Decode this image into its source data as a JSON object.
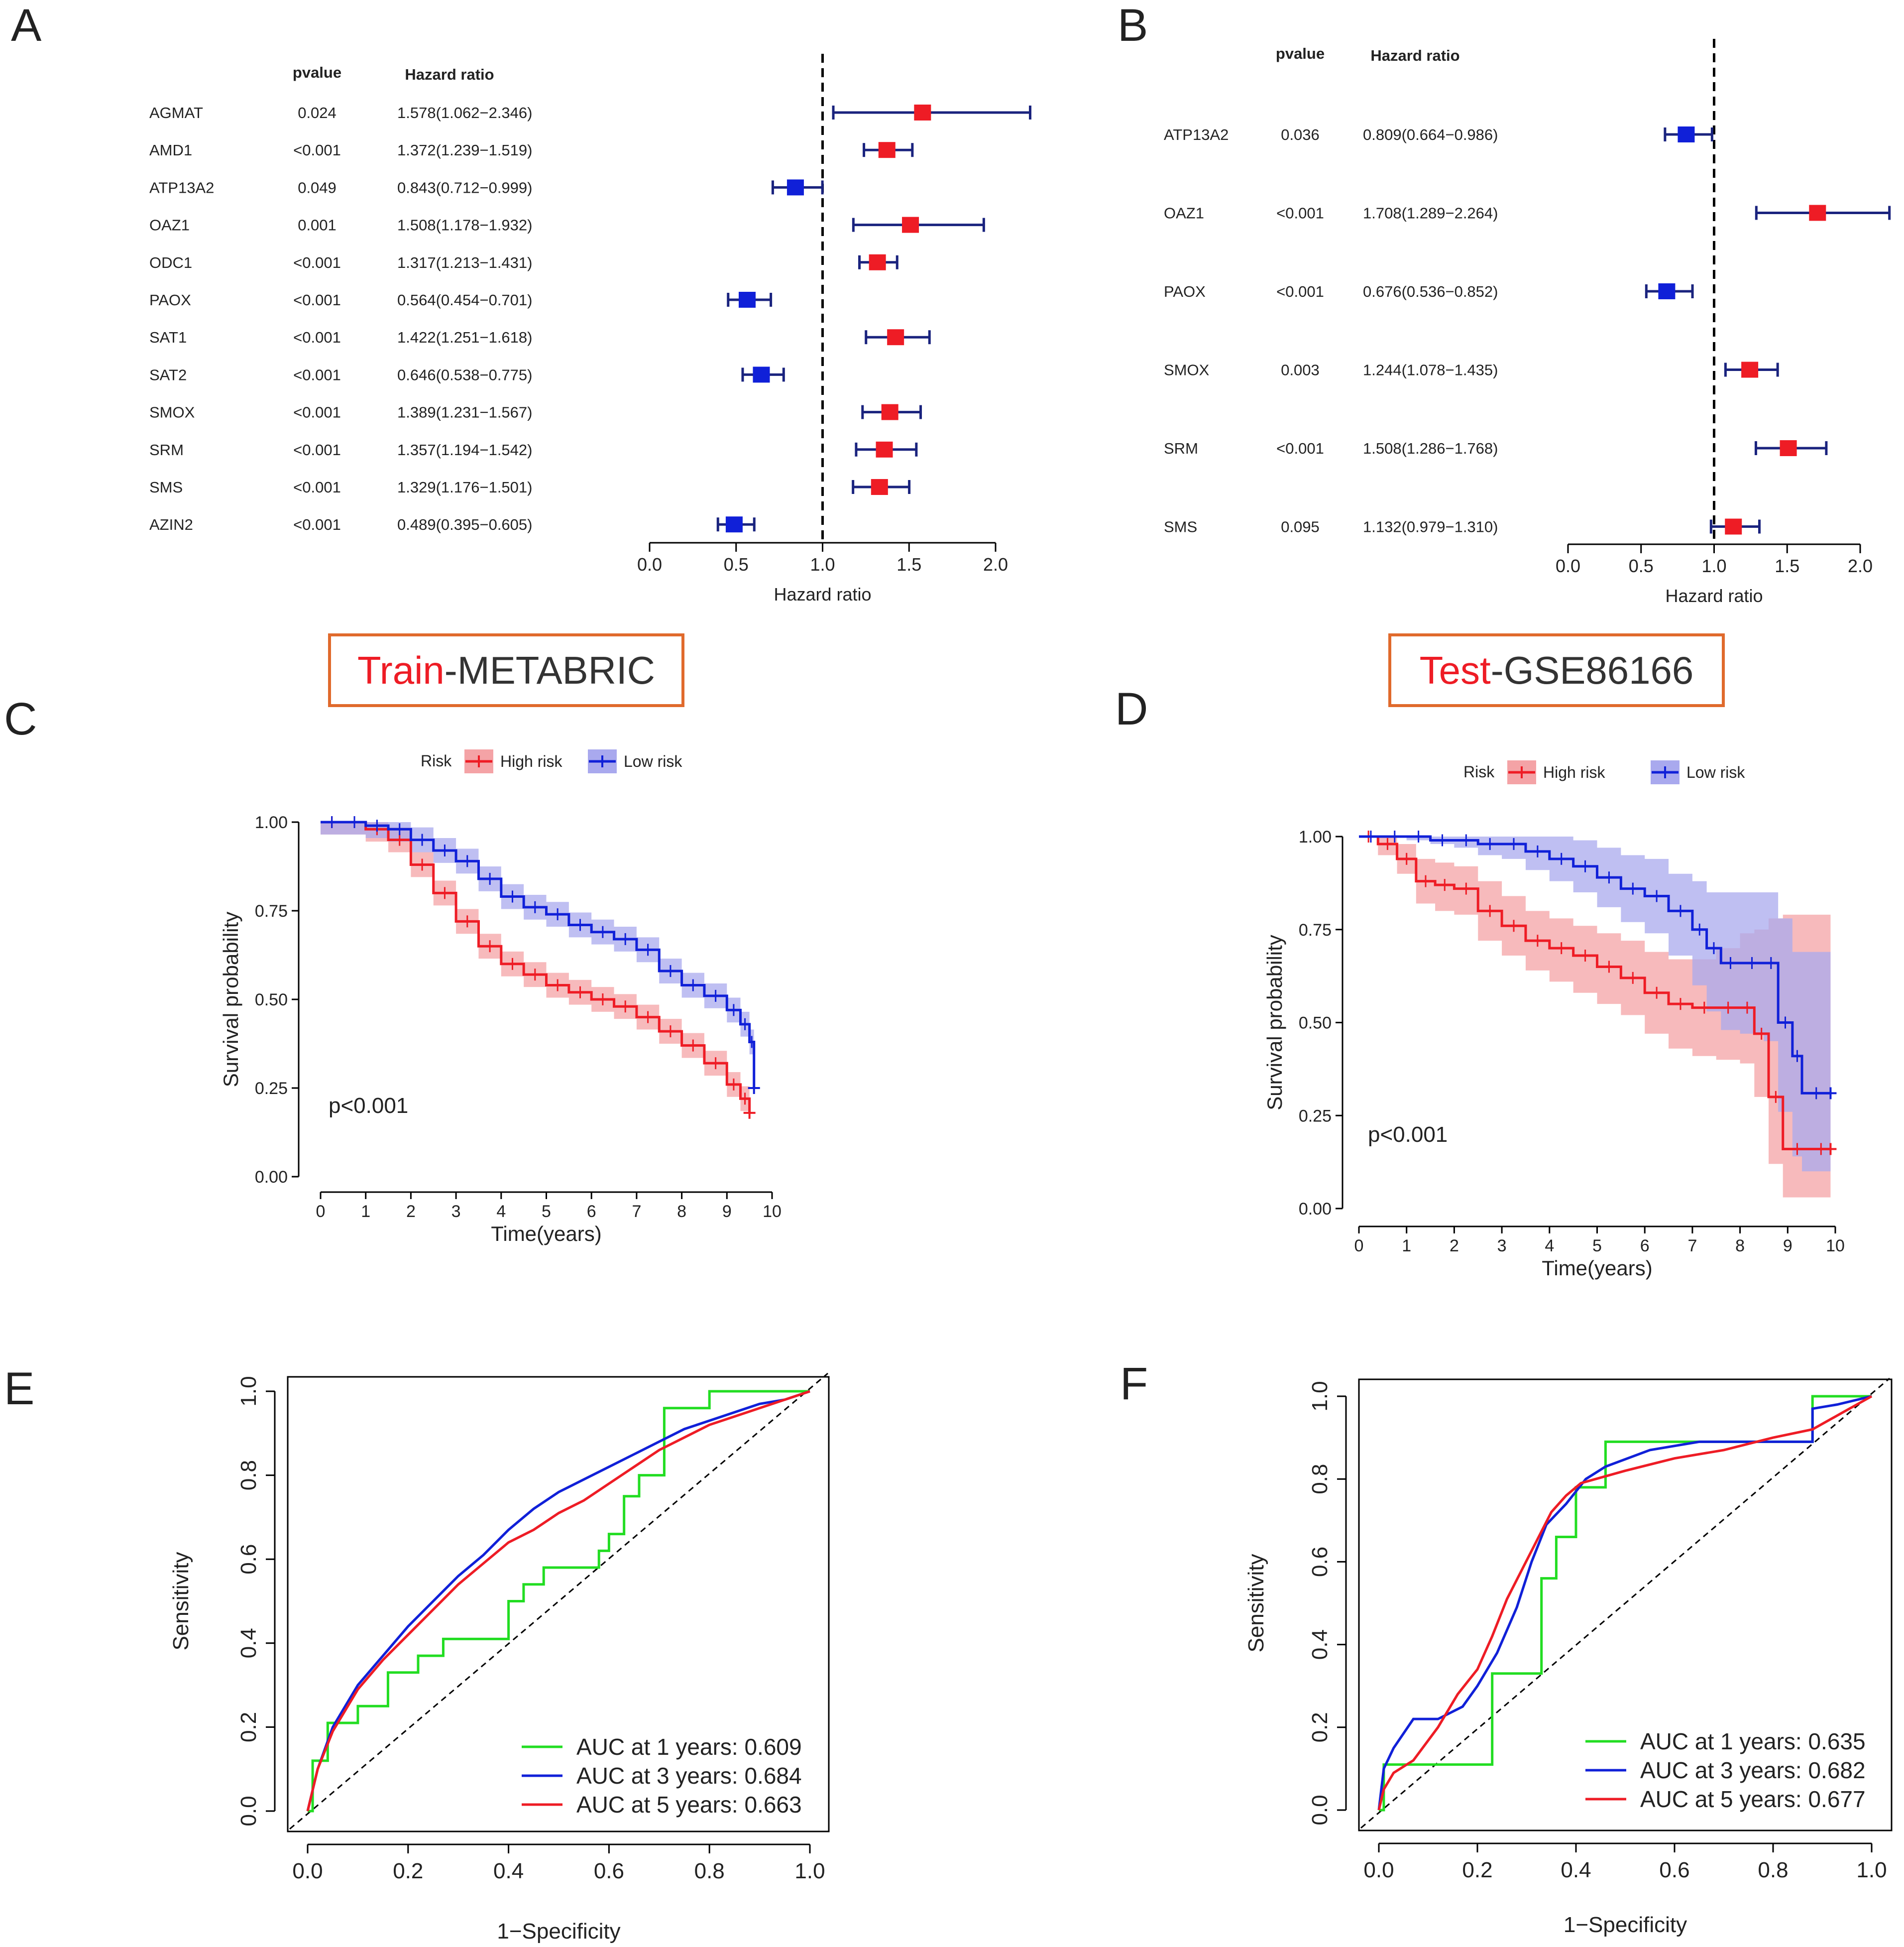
{
  "colors": {
    "high": "#ee1c25",
    "low": "#1020d8",
    "high_band": "#f4a3a6",
    "low_band": "#a9a9ee",
    "whisker": "#1a237e",
    "box_border": "#e06a2c",
    "ink": "#222222",
    "green": "#22dd22"
  },
  "chart_data": [
    {
      "panel": "A",
      "type": "forest",
      "headers": {
        "pvalue": "pvalue",
        "hr": "Hazard ratio"
      },
      "xlabel": "Hazard ratio",
      "xlim": [
        0,
        2
      ],
      "ticks": [
        "0.0",
        "0.5",
        "1.0",
        "1.5",
        "2.0"
      ],
      "tick_values": [
        0,
        0.5,
        1,
        1.5,
        2
      ],
      "ref_line": 1,
      "rows": [
        {
          "gene": "AGMAT",
          "pvalue": "0.024",
          "hr_text": "1.578(1.062−2.346)",
          "hr": 1.578,
          "lo": 1.062,
          "hi": 2.346
        },
        {
          "gene": "AMD1",
          "pvalue": "<0.001",
          "hr_text": "1.372(1.239−1.519)",
          "hr": 1.372,
          "lo": 1.239,
          "hi": 1.519
        },
        {
          "gene": "ATP13A2",
          "pvalue": "0.049",
          "hr_text": "0.843(0.712−0.999)",
          "hr": 0.843,
          "lo": 0.712,
          "hi": 0.999
        },
        {
          "gene": "OAZ1",
          "pvalue": "0.001",
          "hr_text": "1.508(1.178−1.932)",
          "hr": 1.508,
          "lo": 1.178,
          "hi": 1.932
        },
        {
          "gene": "ODC1",
          "pvalue": "<0.001",
          "hr_text": "1.317(1.213−1.431)",
          "hr": 1.317,
          "lo": 1.213,
          "hi": 1.431
        },
        {
          "gene": "PAOX",
          "pvalue": "<0.001",
          "hr_text": "0.564(0.454−0.701)",
          "hr": 0.564,
          "lo": 0.454,
          "hi": 0.701
        },
        {
          "gene": "SAT1",
          "pvalue": "<0.001",
          "hr_text": "1.422(1.251−1.618)",
          "hr": 1.422,
          "lo": 1.251,
          "hi": 1.618
        },
        {
          "gene": "SAT2",
          "pvalue": "<0.001",
          "hr_text": "0.646(0.538−0.775)",
          "hr": 0.646,
          "lo": 0.538,
          "hi": 0.775
        },
        {
          "gene": "SMOX",
          "pvalue": "<0.001",
          "hr_text": "1.389(1.231−1.567)",
          "hr": 1.389,
          "lo": 1.231,
          "hi": 1.567
        },
        {
          "gene": "SRM",
          "pvalue": "<0.001",
          "hr_text": "1.357(1.194−1.542)",
          "hr": 1.357,
          "lo": 1.194,
          "hi": 1.542
        },
        {
          "gene": "SMS",
          "pvalue": "<0.001",
          "hr_text": "1.329(1.176−1.501)",
          "hr": 1.329,
          "lo": 1.176,
          "hi": 1.501
        },
        {
          "gene": "AZIN2",
          "pvalue": "<0.001",
          "hr_text": "0.489(0.395−0.605)",
          "hr": 0.489,
          "lo": 0.395,
          "hi": 0.605
        }
      ]
    },
    {
      "panel": "B",
      "type": "forest",
      "headers": {
        "pvalue": "pvalue",
        "hr": "Hazard ratio"
      },
      "xlabel": "Hazard ratio",
      "xlim": [
        0,
        2
      ],
      "ticks": [
        "0.0",
        "0.5",
        "1.0",
        "1.5",
        "2.0"
      ],
      "tick_values": [
        0,
        0.5,
        1,
        1.5,
        2
      ],
      "ref_line": 1,
      "rows": [
        {
          "gene": "ATP13A2",
          "pvalue": "0.036",
          "hr_text": "0.809(0.664−0.986)",
          "hr": 0.809,
          "lo": 0.664,
          "hi": 0.986
        },
        {
          "gene": "OAZ1",
          "pvalue": "<0.001",
          "hr_text": "1.708(1.289−2.264)",
          "hr": 1.708,
          "lo": 1.289,
          "hi": 2.264
        },
        {
          "gene": "PAOX",
          "pvalue": "<0.001",
          "hr_text": "0.676(0.536−0.852)",
          "hr": 0.676,
          "lo": 0.536,
          "hi": 0.852
        },
        {
          "gene": "SMOX",
          "pvalue": "0.003",
          "hr_text": "1.244(1.078−1.435)",
          "hr": 1.244,
          "lo": 1.078,
          "hi": 1.435
        },
        {
          "gene": "SRM",
          "pvalue": "<0.001",
          "hr_text": "1.508(1.286−1.768)",
          "hr": 1.508,
          "lo": 1.286,
          "hi": 1.768
        },
        {
          "gene": "SMS",
          "pvalue": "0.095",
          "hr_text": "1.132(0.979−1.310)",
          "hr": 1.132,
          "lo": 0.979,
          "hi": 1.31
        }
      ]
    },
    {
      "panel": "C",
      "type": "line",
      "kind": "kaplan-meier",
      "box_title": {
        "red": "Train",
        "black": "-METABRIC"
      },
      "legend_title": "Risk",
      "legend": [
        "High risk",
        "Low risk"
      ],
      "xlabel": "Time(years)",
      "ylabel": "Survival probability",
      "xlim": [
        0,
        10
      ],
      "ylim": [
        0,
        1
      ],
      "xticks": [
        "0",
        "1",
        "2",
        "3",
        "4",
        "5",
        "6",
        "7",
        "8",
        "9",
        "10"
      ],
      "yticks": [
        "0.00",
        "0.25",
        "0.50",
        "0.75",
        "1.00"
      ],
      "pvalue_text": "p<0.001",
      "series": [
        {
          "name": "High risk",
          "color_key": "high",
          "x": [
            0,
            0.5,
            1,
            1.5,
            2,
            2.5,
            3,
            3.5,
            4,
            4.5,
            5,
            5.5,
            6,
            6.5,
            7,
            7.5,
            8,
            8.5,
            9,
            9.3,
            9.5
          ],
          "y": [
            1,
            1,
            0.98,
            0.95,
            0.88,
            0.8,
            0.72,
            0.65,
            0.6,
            0.57,
            0.54,
            0.52,
            0.5,
            0.48,
            0.45,
            0.41,
            0.37,
            0.32,
            0.26,
            0.22,
            0.18
          ],
          "band": 0.035
        },
        {
          "name": "Low risk",
          "color_key": "low",
          "x": [
            0,
            0.5,
            1,
            1.5,
            2,
            2.5,
            3,
            3.5,
            4,
            4.5,
            5,
            5.5,
            6,
            6.5,
            7,
            7.5,
            8,
            8.5,
            9,
            9.3,
            9.5,
            9.6
          ],
          "y": [
            1,
            1,
            0.99,
            0.98,
            0.95,
            0.92,
            0.89,
            0.84,
            0.79,
            0.76,
            0.74,
            0.71,
            0.69,
            0.67,
            0.64,
            0.58,
            0.54,
            0.51,
            0.47,
            0.43,
            0.38,
            0.25
          ],
          "band": 0.035
        }
      ]
    },
    {
      "panel": "D",
      "type": "line",
      "kind": "kaplan-meier",
      "box_title": {
        "red": "Test",
        "black": "-GSE86166"
      },
      "legend_title": "Risk",
      "legend": [
        "High risk",
        "Low risk"
      ],
      "xlabel": "Time(years)",
      "ylabel": "Survival probability",
      "xlim": [
        0,
        10
      ],
      "ylim": [
        0,
        1
      ],
      "xticks": [
        "0",
        "1",
        "2",
        "3",
        "4",
        "5",
        "6",
        "7",
        "8",
        "9",
        "10"
      ],
      "yticks": [
        "0.00",
        "0.25",
        "0.50",
        "0.75",
        "1.00"
      ],
      "pvalue_text": "p<0.001",
      "series": [
        {
          "name": "High risk",
          "color_key": "high",
          "x": [
            0,
            0.4,
            0.8,
            1.2,
            1.6,
            2,
            2.5,
            3,
            3.5,
            4,
            4.5,
            5,
            5.5,
            6,
            6.5,
            7,
            7.5,
            8,
            8.3,
            8.6,
            8.9,
            9.5,
            9.9
          ],
          "y": [
            1,
            0.98,
            0.94,
            0.88,
            0.87,
            0.86,
            0.8,
            0.76,
            0.72,
            0.7,
            0.68,
            0.65,
            0.62,
            0.58,
            0.55,
            0.54,
            0.54,
            0.54,
            0.47,
            0.3,
            0.16,
            0.16,
            0.16
          ],
          "lower": [
            1,
            0.95,
            0.9,
            0.82,
            0.8,
            0.79,
            0.72,
            0.68,
            0.64,
            0.61,
            0.58,
            0.55,
            0.52,
            0.47,
            0.43,
            0.41,
            0.4,
            0.39,
            0.3,
            0.12,
            0.03,
            0.03,
            0.03
          ],
          "upper": [
            1,
            1,
            0.98,
            0.94,
            0.93,
            0.92,
            0.88,
            0.84,
            0.8,
            0.78,
            0.76,
            0.74,
            0.72,
            0.69,
            0.67,
            0.67,
            0.7,
            0.74,
            0.75,
            0.78,
            0.79,
            0.79,
            0.79
          ]
        },
        {
          "name": "Low risk",
          "color_key": "low",
          "x": [
            0,
            0.5,
            1,
            1.5,
            2,
            2.5,
            3,
            3.5,
            4,
            4.5,
            5,
            5.5,
            6,
            6.5,
            7,
            7.3,
            7.6,
            8,
            8.5,
            8.8,
            9.1,
            9.3,
            9.9
          ],
          "y": [
            1,
            1,
            1,
            0.99,
            0.99,
            0.98,
            0.98,
            0.96,
            0.94,
            0.92,
            0.89,
            0.86,
            0.84,
            0.8,
            0.75,
            0.7,
            0.66,
            0.66,
            0.66,
            0.5,
            0.41,
            0.31,
            0.31
          ],
          "lower": [
            1,
            1,
            0.99,
            0.98,
            0.97,
            0.95,
            0.94,
            0.91,
            0.88,
            0.85,
            0.81,
            0.77,
            0.74,
            0.68,
            0.6,
            0.53,
            0.48,
            0.47,
            0.45,
            0.26,
            0.14,
            0.1,
            0.1
          ],
          "upper": [
            1,
            1,
            1,
            1,
            1,
            1,
            1,
            1,
            1,
            0.99,
            0.97,
            0.95,
            0.94,
            0.9,
            0.88,
            0.85,
            0.85,
            0.85,
            0.85,
            0.78,
            0.69,
            0.69,
            0.69
          ]
        }
      ]
    },
    {
      "panel": "E",
      "type": "line",
      "kind": "roc",
      "xlabel": "1−Specificity",
      "ylabel": "Sensitivity",
      "xlim": [
        0,
        1
      ],
      "ylim": [
        0,
        1
      ],
      "ticks": [
        "0.0",
        "0.2",
        "0.4",
        "0.6",
        "0.8",
        "1.0"
      ],
      "legend_texts": [
        "AUC at 1 years: 0.609",
        "AUC at 3 years: 0.684",
        "AUC at 5 years: 0.663"
      ],
      "series": [
        {
          "name": "1 years",
          "auc": 0.609,
          "color_key": "green",
          "x": [
            0,
            0.01,
            0.01,
            0.04,
            0.04,
            0.1,
            0.1,
            0.16,
            0.16,
            0.22,
            0.22,
            0.27,
            0.27,
            0.4,
            0.4,
            0.43,
            0.43,
            0.47,
            0.47,
            0.58,
            0.58,
            0.6,
            0.6,
            0.63,
            0.63,
            0.66,
            0.66,
            0.71,
            0.71,
            0.8,
            0.8,
            1.0
          ],
          "y": [
            0,
            0,
            0.12,
            0.12,
            0.21,
            0.21,
            0.25,
            0.25,
            0.33,
            0.33,
            0.37,
            0.37,
            0.41,
            0.41,
            0.5,
            0.5,
            0.54,
            0.54,
            0.58,
            0.58,
            0.62,
            0.62,
            0.66,
            0.66,
            0.75,
            0.75,
            0.8,
            0.8,
            0.96,
            0.96,
            1.0,
            1.0
          ]
        },
        {
          "name": "3 years",
          "auc": 0.684,
          "color_key": "low",
          "x": [
            0,
            0.02,
            0.05,
            0.1,
            0.15,
            0.2,
            0.25,
            0.3,
            0.35,
            0.4,
            0.45,
            0.5,
            0.55,
            0.6,
            0.65,
            0.7,
            0.75,
            0.8,
            0.85,
            0.9,
            0.95,
            1.0
          ],
          "y": [
            0,
            0.1,
            0.2,
            0.3,
            0.37,
            0.44,
            0.5,
            0.56,
            0.61,
            0.67,
            0.72,
            0.76,
            0.79,
            0.82,
            0.85,
            0.88,
            0.91,
            0.93,
            0.95,
            0.97,
            0.98,
            1.0
          ]
        },
        {
          "name": "5 years",
          "auc": 0.663,
          "color_key": "high",
          "x": [
            0,
            0.02,
            0.05,
            0.1,
            0.15,
            0.2,
            0.25,
            0.3,
            0.35,
            0.4,
            0.45,
            0.5,
            0.55,
            0.6,
            0.65,
            0.7,
            0.75,
            0.8,
            0.85,
            0.9,
            0.95,
            1.0
          ],
          "y": [
            0,
            0.1,
            0.19,
            0.29,
            0.36,
            0.42,
            0.48,
            0.54,
            0.59,
            0.64,
            0.67,
            0.71,
            0.74,
            0.78,
            0.82,
            0.86,
            0.89,
            0.92,
            0.94,
            0.96,
            0.98,
            1.0
          ]
        }
      ]
    },
    {
      "panel": "F",
      "type": "line",
      "kind": "roc",
      "xlabel": "1−Specificity",
      "ylabel": "Sensitivity",
      "xlim": [
        0,
        1
      ],
      "ylim": [
        0,
        1
      ],
      "ticks": [
        "0.0",
        "0.2",
        "0.4",
        "0.6",
        "0.8",
        "1.0"
      ],
      "legend_texts": [
        "AUC at 1 years: 0.635",
        "AUC at 3 years: 0.682",
        "AUC at 5 years: 0.677"
      ],
      "series": [
        {
          "name": "1 years",
          "auc": 0.635,
          "color_key": "green",
          "x": [
            0,
            0.01,
            0.01,
            0.05,
            0.05,
            0.23,
            0.23,
            0.33,
            0.33,
            0.36,
            0.36,
            0.4,
            0.4,
            0.46,
            0.46,
            0.88,
            0.88,
            1.0
          ],
          "y": [
            0,
            0,
            0.11,
            0.11,
            0.11,
            0.11,
            0.33,
            0.33,
            0.56,
            0.56,
            0.66,
            0.66,
            0.78,
            0.78,
            0.89,
            0.89,
            1.0,
            1.0
          ]
        },
        {
          "name": "3 years",
          "auc": 0.682,
          "color_key": "low",
          "x": [
            0,
            0.01,
            0.03,
            0.07,
            0.12,
            0.17,
            0.2,
            0.24,
            0.28,
            0.31,
            0.34,
            0.38,
            0.42,
            0.46,
            0.55,
            0.65,
            0.75,
            0.88,
            0.88,
            0.93,
            1.0
          ],
          "y": [
            0,
            0.1,
            0.15,
            0.22,
            0.22,
            0.25,
            0.3,
            0.38,
            0.49,
            0.6,
            0.69,
            0.74,
            0.8,
            0.83,
            0.87,
            0.89,
            0.89,
            0.89,
            0.97,
            0.98,
            1.0
          ]
        },
        {
          "name": "5 years",
          "auc": 0.677,
          "color_key": "high",
          "x": [
            0,
            0.01,
            0.03,
            0.07,
            0.12,
            0.16,
            0.2,
            0.23,
            0.26,
            0.29,
            0.32,
            0.35,
            0.38,
            0.41,
            0.44,
            0.5,
            0.6,
            0.7,
            0.8,
            0.88,
            0.94,
            1.0
          ],
          "y": [
            0,
            0.05,
            0.09,
            0.12,
            0.2,
            0.28,
            0.34,
            0.42,
            0.51,
            0.58,
            0.65,
            0.72,
            0.76,
            0.79,
            0.8,
            0.82,
            0.85,
            0.87,
            0.9,
            0.92,
            0.96,
            1.0
          ]
        }
      ]
    }
  ]
}
